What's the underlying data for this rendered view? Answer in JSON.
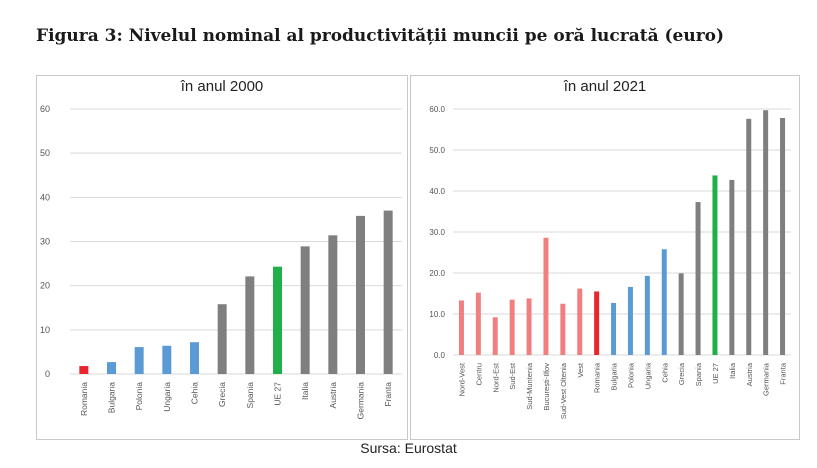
{
  "page": {
    "title": "Figura 3: Nivelul nominal al productivității muncii pe oră lucrată (euro)",
    "source": "Sursa: Eurostat"
  },
  "colors": {
    "red": "#e8262b",
    "blue": "#5b9bd5",
    "gray": "#7f7f7f",
    "green": "#1fb04a",
    "pink": "#f08080"
  },
  "chart_data": [
    {
      "type": "bar",
      "title": "în anul 2000",
      "ylim": [
        0,
        60
      ],
      "yticks": [
        "0",
        "10",
        "20",
        "30",
        "40",
        "50",
        "60"
      ],
      "grid": true,
      "categories": [
        "Romania",
        "Bulgaria",
        "Polonia",
        "Ungaria",
        "Cehia",
        "Grecia",
        "Spania",
        "UE 27",
        "Italia",
        "Austria",
        "Germania",
        "Franta"
      ],
      "values": [
        1.8,
        2.7,
        6.1,
        6.4,
        7.2,
        15.8,
        22.1,
        24.3,
        28.9,
        31.4,
        35.8,
        37.0
      ],
      "colors": [
        "red",
        "blue",
        "blue",
        "blue",
        "blue",
        "gray",
        "gray",
        "green",
        "gray",
        "gray",
        "gray",
        "gray"
      ]
    },
    {
      "type": "bar",
      "title": "în anul 2021",
      "ylim": [
        0,
        60
      ],
      "yticks": [
        "0.0",
        "10.0",
        "20.0",
        "30.0",
        "40.0",
        "50.0",
        "60.0"
      ],
      "grid": true,
      "categories": [
        "Nord-Vest",
        "Centru",
        "Nord-Est",
        "Sud-Est",
        "Sud-Muntenia",
        "București-Ilfov",
        "Sud-Vest Oltenia",
        "Vest",
        "Romania",
        "Bulgaria",
        "Polonia",
        "Ungaria",
        "Cehia",
        "Grecia",
        "Spania",
        "UE 27",
        "Italia",
        "Austria",
        "Germania",
        "Franta"
      ],
      "values": [
        13.3,
        15.2,
        9.2,
        13.5,
        13.8,
        28.6,
        12.5,
        16.2,
        15.5,
        12.7,
        16.6,
        19.3,
        25.8,
        19.9,
        37.3,
        43.8,
        42.7,
        57.6,
        59.7,
        57.8
      ],
      "colors": [
        "pink",
        "pink",
        "pink",
        "pink",
        "pink",
        "pink",
        "pink",
        "pink",
        "red",
        "blue",
        "blue",
        "blue",
        "blue",
        "gray",
        "gray",
        "green",
        "gray",
        "gray",
        "gray",
        "gray"
      ]
    }
  ]
}
